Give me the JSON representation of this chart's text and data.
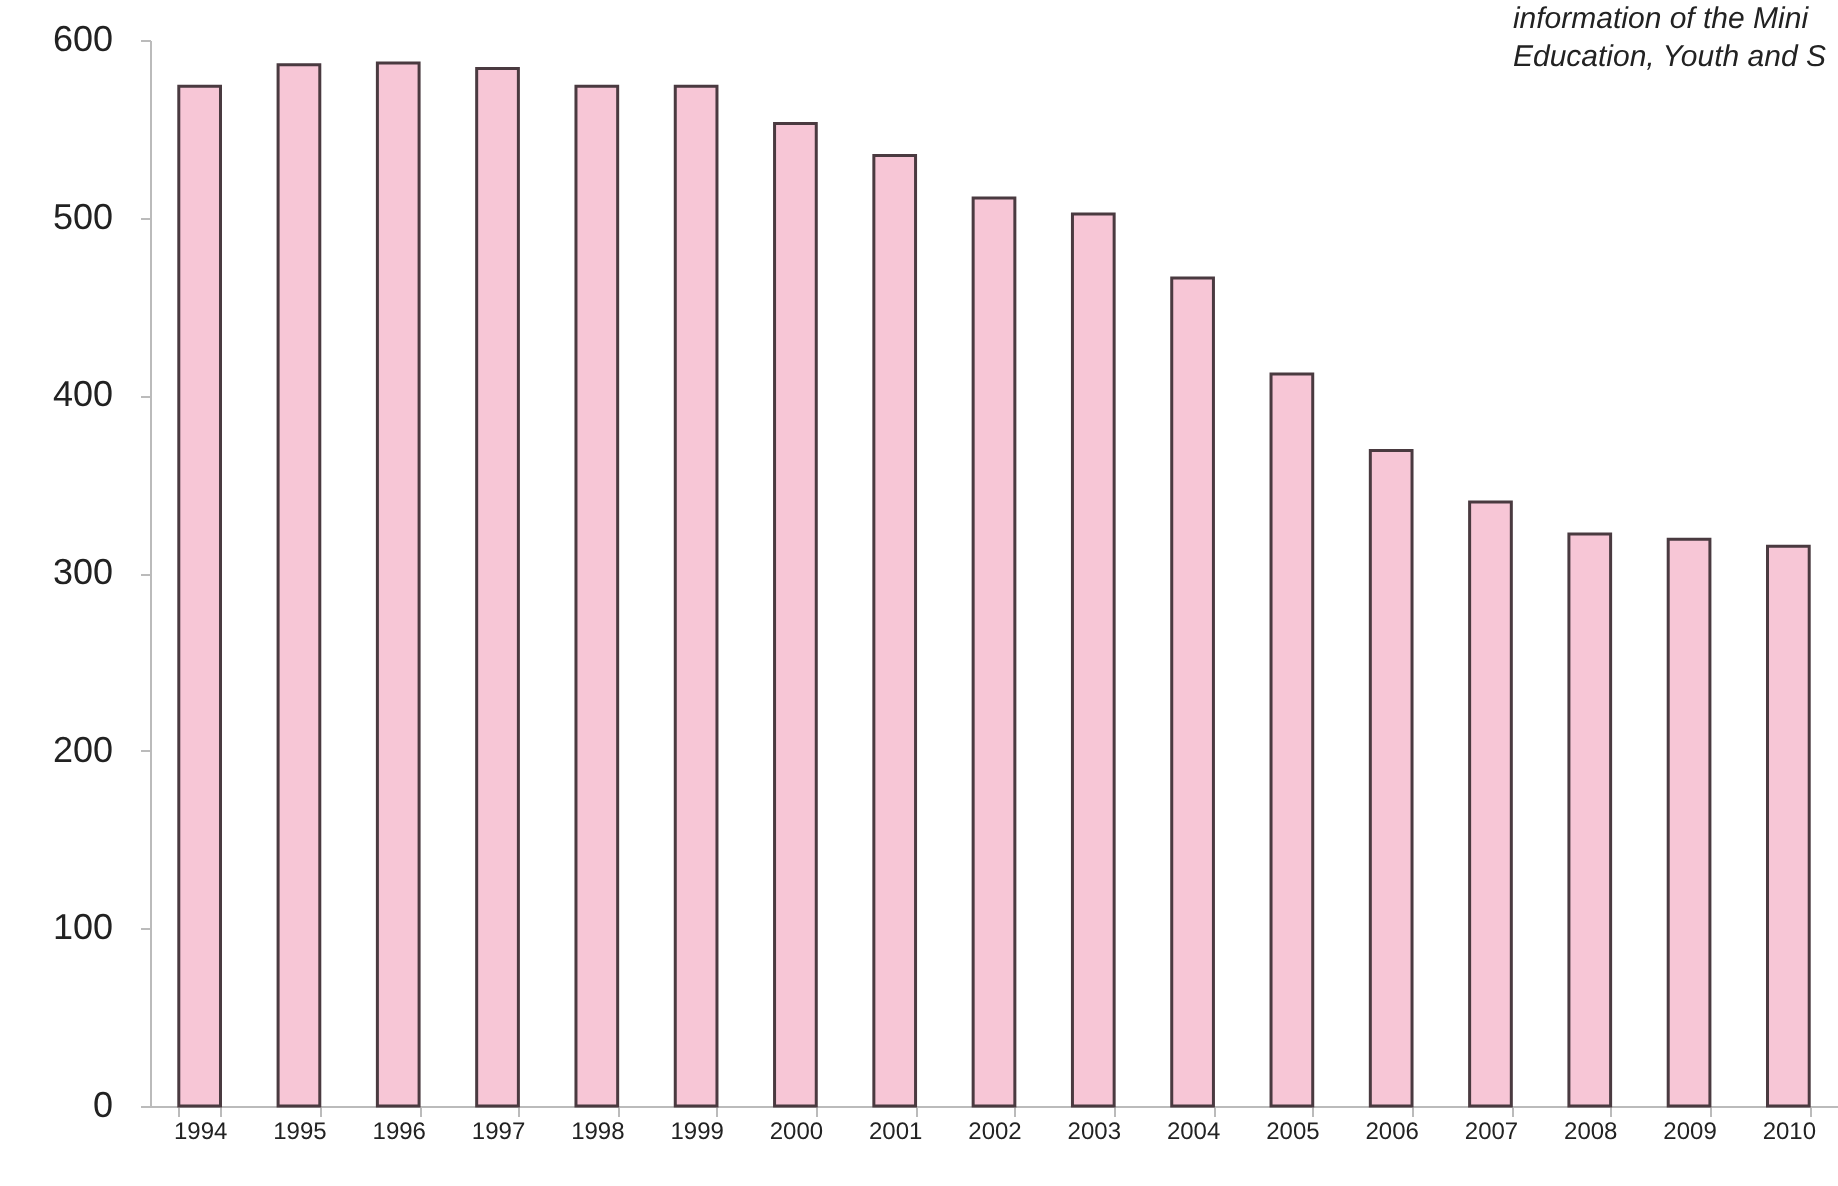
{
  "chart_data": {
    "type": "bar",
    "categories": [
      "1994",
      "1995",
      "1996",
      "1997",
      "1998",
      "1999",
      "2000",
      "2001",
      "2002",
      "2003",
      "2004",
      "2005",
      "2006",
      "2007",
      "2008",
      "2009",
      "2010"
    ],
    "values": [
      574,
      586,
      587,
      584,
      574,
      574,
      553,
      535,
      511,
      502,
      466,
      412,
      369,
      340,
      322,
      319,
      315
    ],
    "color": "#f7c6d6",
    "ylim": [
      0,
      600
    ],
    "yticks": [
      0,
      100,
      200,
      300,
      400,
      500,
      600
    ],
    "grid": false,
    "annotations": [
      "information of the Mini",
      "Education, Youth and S"
    ]
  }
}
